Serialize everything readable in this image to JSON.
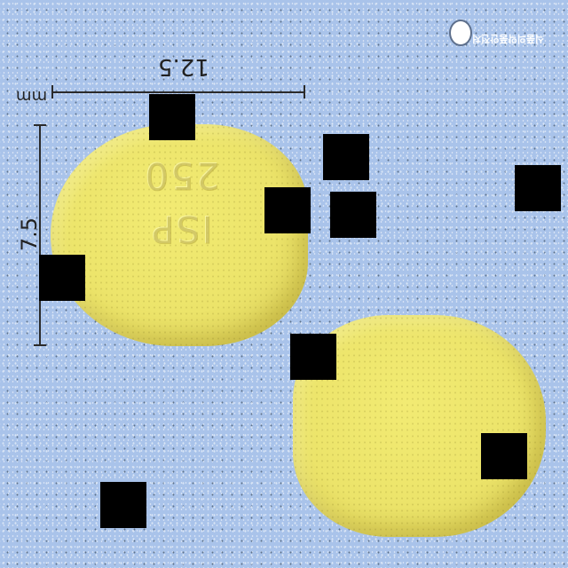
{
  "photo": {
    "background_color": "#a9c3ea",
    "tablet_color": "#ece46a",
    "imprint_text": "ISP 250",
    "width_value": "12.5",
    "height_value": "7.5",
    "unit_label": "mm",
    "logo_text": "식품의약품안전처",
    "logo_icon": "agency-emblem-icon"
  }
}
